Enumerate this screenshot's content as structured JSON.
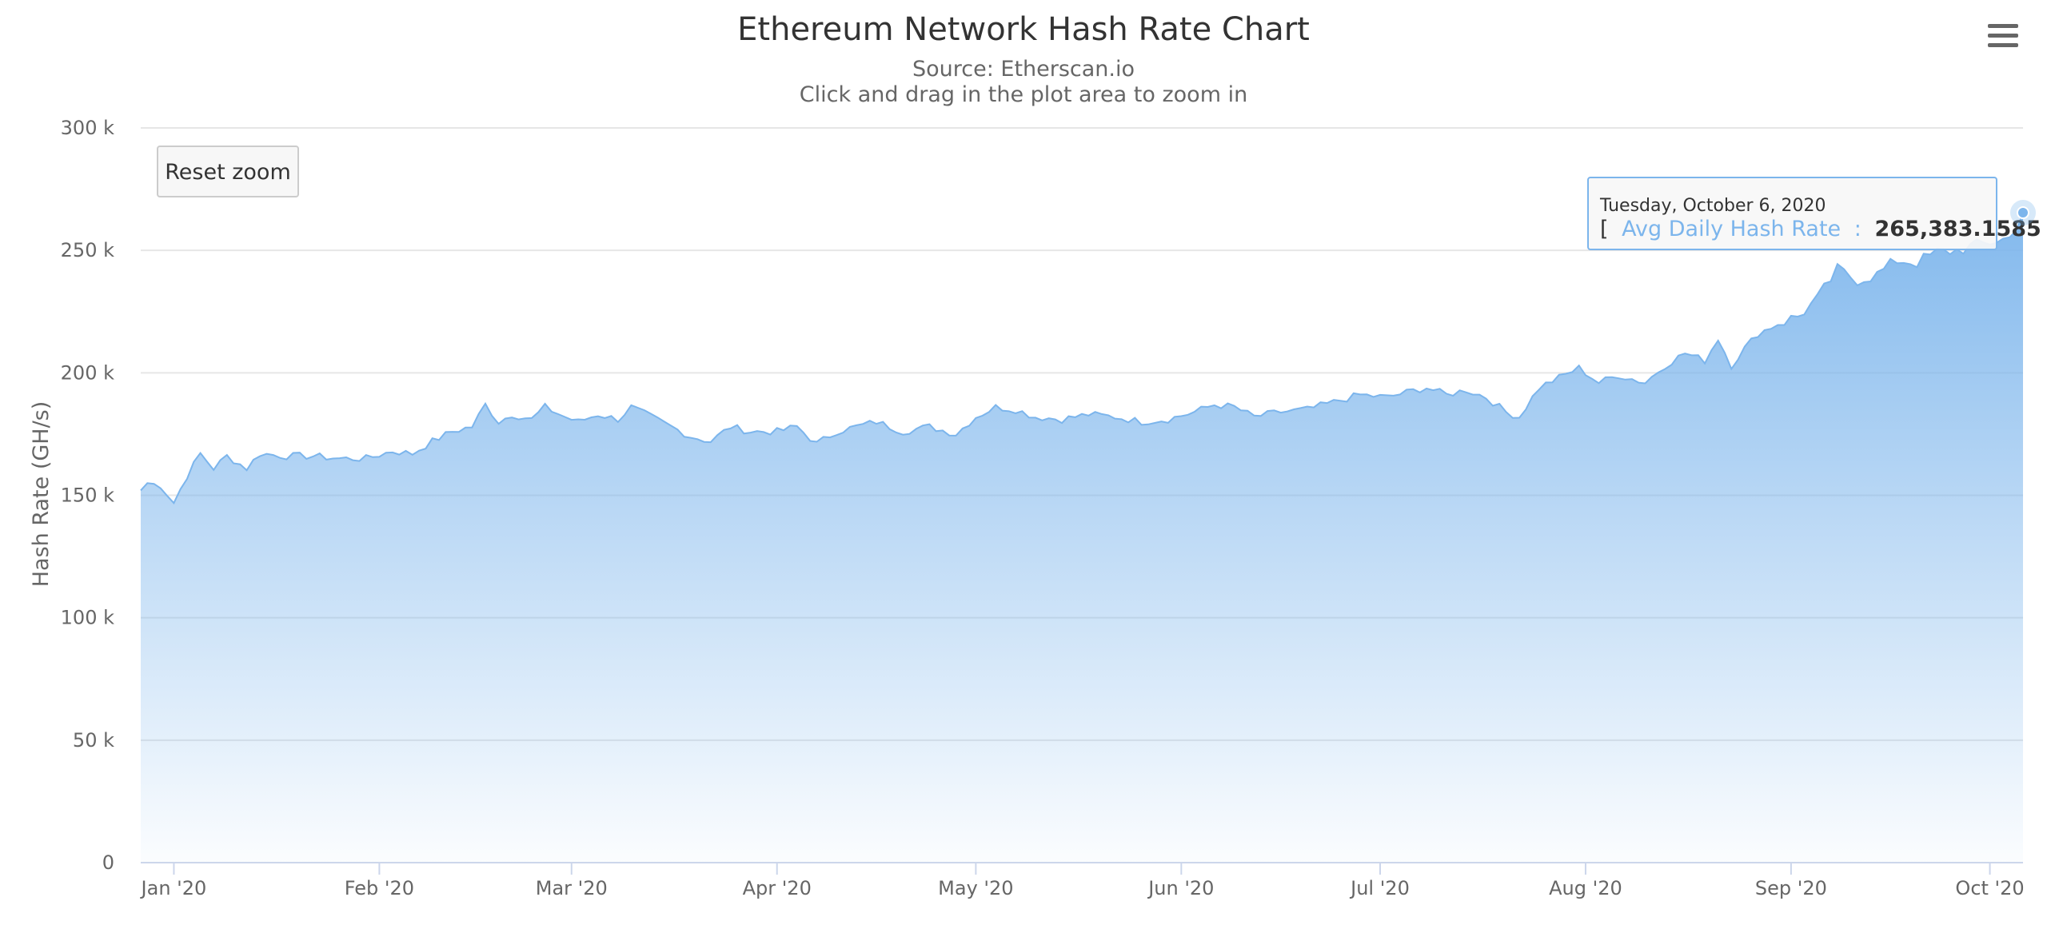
{
  "chart_data": {
    "type": "area",
    "title": "Ethereum Network Hash Rate Chart",
    "subtitles": [
      "Source: Etherscan.io",
      "Click and drag in the plot area to zoom in"
    ],
    "ylabel": "Hash Rate (GH/s)",
    "xlabel": "",
    "xlim": [
      "2019-12-27",
      "2020-10-06"
    ],
    "ylim": [
      0,
      300000
    ],
    "y_ticks": [
      0,
      50000,
      100000,
      150000,
      200000,
      250000,
      300000
    ],
    "y_tick_labels": [
      "0",
      "50 k",
      "100 k",
      "150 k",
      "200 k",
      "250 k",
      "300 k"
    ],
    "x_ticks": [
      {
        "date": "2020-01-01",
        "label": "Jan '20"
      },
      {
        "date": "2020-02-01",
        "label": "Feb '20"
      },
      {
        "date": "2020-03-01",
        "label": "Mar '20"
      },
      {
        "date": "2020-04-01",
        "label": "Apr '20"
      },
      {
        "date": "2020-05-01",
        "label": "May '20"
      },
      {
        "date": "2020-06-01",
        "label": "Jun '20"
      },
      {
        "date": "2020-07-01",
        "label": "Jul '20"
      },
      {
        "date": "2020-08-01",
        "label": "Aug '20"
      },
      {
        "date": "2020-09-01",
        "label": "Sep '20"
      },
      {
        "date": "2020-10-01",
        "label": "Oct '20"
      }
    ],
    "grid": true,
    "legend": "none",
    "series": [
      {
        "name": "Avg Daily Hash Rate",
        "color": "#7cb5ec",
        "points": [
          [
            "2019-12-27",
            152000
          ],
          [
            "2019-12-28",
            155000
          ],
          [
            "2019-12-30",
            154000
          ],
          [
            "2020-01-01",
            147000
          ],
          [
            "2020-01-03",
            158000
          ],
          [
            "2020-01-05",
            167000
          ],
          [
            "2020-01-07",
            161000
          ],
          [
            "2020-01-09",
            166000
          ],
          [
            "2020-01-12",
            161000
          ],
          [
            "2020-01-14",
            167000
          ],
          [
            "2020-01-18",
            166000
          ],
          [
            "2020-01-22",
            166000
          ],
          [
            "2020-01-26",
            165000
          ],
          [
            "2020-01-30",
            165000
          ],
          [
            "2020-02-03",
            168000
          ],
          [
            "2020-02-06",
            167000
          ],
          [
            "2020-02-09",
            172000
          ],
          [
            "2020-02-12",
            176000
          ],
          [
            "2020-02-15",
            178000
          ],
          [
            "2020-02-17",
            187000
          ],
          [
            "2020-02-19",
            180000
          ],
          [
            "2020-02-21",
            183000
          ],
          [
            "2020-02-24",
            181000
          ],
          [
            "2020-02-26",
            186000
          ],
          [
            "2020-02-29",
            182000
          ],
          [
            "2020-03-02",
            180000
          ],
          [
            "2020-03-05",
            183000
          ],
          [
            "2020-03-08",
            181000
          ],
          [
            "2020-03-10",
            186000
          ],
          [
            "2020-03-13",
            182000
          ],
          [
            "2020-03-16",
            178000
          ],
          [
            "2020-03-19",
            174000
          ],
          [
            "2020-03-22",
            172000
          ],
          [
            "2020-03-25",
            178000
          ],
          [
            "2020-03-28",
            176000
          ],
          [
            "2020-04-01",
            176000
          ],
          [
            "2020-04-04",
            178000
          ],
          [
            "2020-04-07",
            171000
          ],
          [
            "2020-04-10",
            176000
          ],
          [
            "2020-04-13",
            178000
          ],
          [
            "2020-04-16",
            180000
          ],
          [
            "2020-04-20",
            176000
          ],
          [
            "2020-04-24",
            178000
          ],
          [
            "2020-04-28",
            175000
          ],
          [
            "2020-05-01",
            182000
          ],
          [
            "2020-05-04",
            186000
          ],
          [
            "2020-05-07",
            185000
          ],
          [
            "2020-05-10",
            182000
          ],
          [
            "2020-05-14",
            181000
          ],
          [
            "2020-05-18",
            183000
          ],
          [
            "2020-05-22",
            182000
          ],
          [
            "2020-05-26",
            180000
          ],
          [
            "2020-05-30",
            181000
          ],
          [
            "2020-06-03",
            184000
          ],
          [
            "2020-06-06",
            187000
          ],
          [
            "2020-06-09",
            186000
          ],
          [
            "2020-06-12",
            182000
          ],
          [
            "2020-06-16",
            184000
          ],
          [
            "2020-06-20",
            185000
          ],
          [
            "2020-06-24",
            188000
          ],
          [
            "2020-06-28",
            191000
          ],
          [
            "2020-07-02",
            190000
          ],
          [
            "2020-07-05",
            192000
          ],
          [
            "2020-07-08",
            194000
          ],
          [
            "2020-07-11",
            191000
          ],
          [
            "2020-07-14",
            193000
          ],
          [
            "2020-07-17",
            190000
          ],
          [
            "2020-07-20",
            184000
          ],
          [
            "2020-07-22",
            182000
          ],
          [
            "2020-07-25",
            194000
          ],
          [
            "2020-07-28",
            198000
          ],
          [
            "2020-07-31",
            202000
          ],
          [
            "2020-08-03",
            196000
          ],
          [
            "2020-08-06",
            199000
          ],
          [
            "2020-08-10",
            196000
          ],
          [
            "2020-08-13",
            203000
          ],
          [
            "2020-08-16",
            208000
          ],
          [
            "2020-08-19",
            205000
          ],
          [
            "2020-08-21",
            214000
          ],
          [
            "2020-08-23",
            203000
          ],
          [
            "2020-08-25",
            210000
          ],
          [
            "2020-08-27",
            216000
          ],
          [
            "2020-08-30",
            220000
          ],
          [
            "2020-09-02",
            223000
          ],
          [
            "2020-09-05",
            230000
          ],
          [
            "2020-09-08",
            242000
          ],
          [
            "2020-09-11",
            238000
          ],
          [
            "2020-09-14",
            240000
          ],
          [
            "2020-09-17",
            246000
          ],
          [
            "2020-09-20",
            245000
          ],
          [
            "2020-09-23",
            249000
          ],
          [
            "2020-09-26",
            250000
          ],
          [
            "2020-09-29",
            252000
          ],
          [
            "2020-10-02",
            254000
          ],
          [
            "2020-10-04",
            255000
          ],
          [
            "2020-10-06",
            265383.1585
          ]
        ]
      }
    ],
    "tooltip": {
      "date": "Tuesday, October 6, 2020",
      "bracket_open": "[",
      "series_label": "Avg Daily Hash Rate",
      "separator": ":",
      "value": "265,383.1585",
      "bracket_close": "]"
    }
  },
  "controls": {
    "reset_zoom_label": "Reset zoom",
    "menu_icon": "hamburger-menu-icon"
  },
  "colors": {
    "series": "#7cb5ec",
    "grid": "#e6e6e6",
    "axis": "#ccd6eb",
    "text": "#666666"
  }
}
